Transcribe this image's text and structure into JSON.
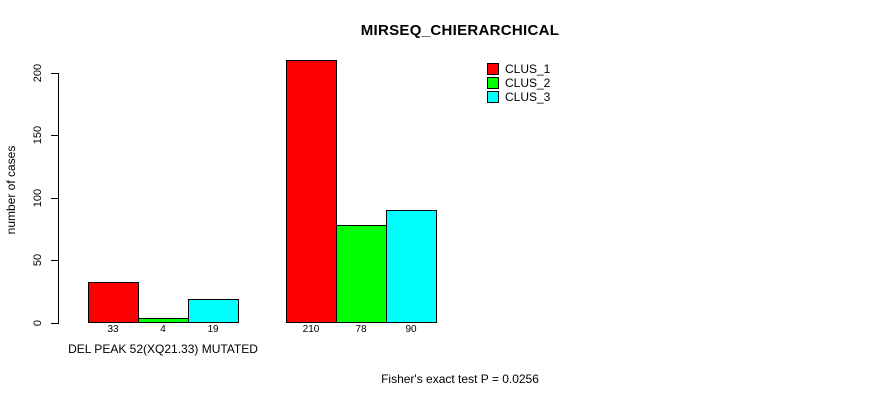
{
  "chart_data": {
    "type": "bar",
    "title": "MIRSEQ_CHIERARCHICAL",
    "xlabel": "",
    "ylabel": "number of cases",
    "ylim": [
      0,
      200
    ],
    "yticks": [
      0,
      50,
      100,
      150,
      200
    ],
    "grid": false,
    "legend_position": "top-right",
    "bar_border_color": "#000000",
    "series": [
      {
        "name": "CLUS_1",
        "color": "#ff0000"
      },
      {
        "name": "CLUS_2",
        "color": "#00ff00"
      },
      {
        "name": "CLUS_3",
        "color": "#00ffff"
      }
    ],
    "groups": [
      {
        "label": "DEL PEAK 52(XQ21.33) MUTATED",
        "values": [
          33,
          4,
          19
        ]
      },
      {
        "label": "",
        "values": [
          210,
          78,
          90
        ]
      }
    ]
  },
  "footer": {
    "note": "Fisher's exact test P = 0.0256"
  }
}
